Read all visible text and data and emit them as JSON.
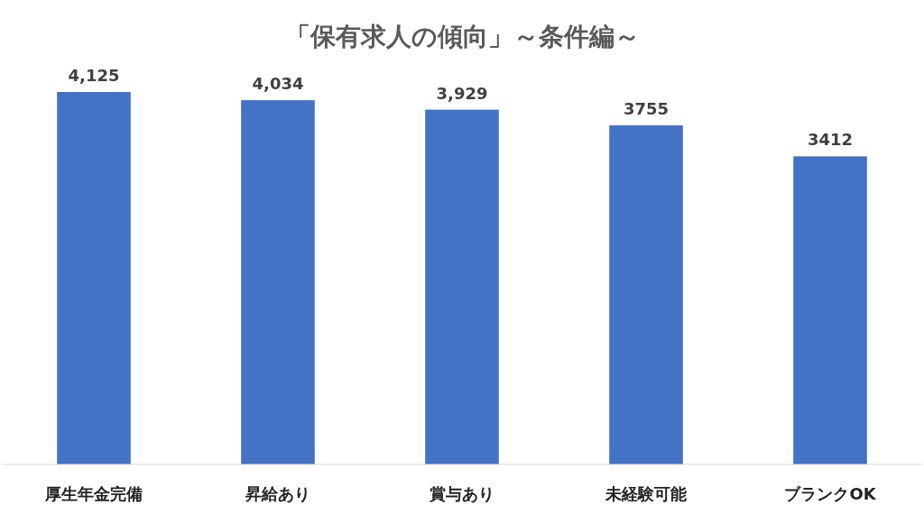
{
  "chart_data": {
    "type": "bar",
    "title": "「保有求人の傾向」～条件編～",
    "categories": [
      "厚生年金完備",
      "昇給あり",
      "賞与あり",
      "未経験可能",
      "ブランクOK"
    ],
    "values": [
      4125,
      4034,
      3929,
      3755,
      3412
    ],
    "value_labels": [
      "4,125",
      "4,034",
      "3,929",
      "3755",
      "3412"
    ],
    "color": "#4472c4"
  }
}
